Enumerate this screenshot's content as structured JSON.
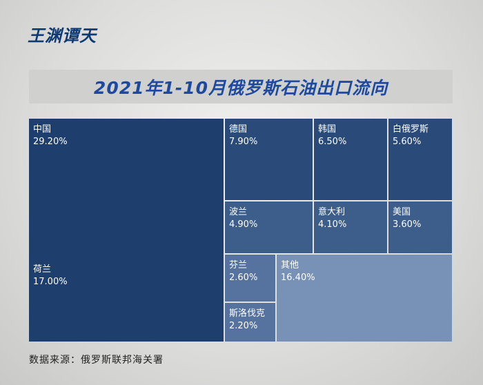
{
  "logo_text": "王渊谭天",
  "title": "2021年1-10月俄罗斯石油出口流向",
  "source": "数据来源：俄罗斯联邦海关署",
  "chart_data": {
    "type": "treemap",
    "title": "2021年1-10月俄罗斯石油出口流向",
    "items": [
      {
        "name": "中国",
        "label": "29.20%",
        "value": 29.2,
        "color": "#1e3f6e"
      },
      {
        "name": "荷兰",
        "label": "17.00%",
        "value": 17.0,
        "color": "#1e3f6e"
      },
      {
        "name": "德国",
        "label": "7.90%",
        "value": 7.9,
        "color": "#2a4b7a"
      },
      {
        "name": "韩国",
        "label": "6.50%",
        "value": 6.5,
        "color": "#2a4b7a"
      },
      {
        "name": "白俄罗斯",
        "label": "5.60%",
        "value": 5.6,
        "color": "#2a4b7a"
      },
      {
        "name": "波兰",
        "label": "4.90%",
        "value": 4.9,
        "color": "#3d5d8b"
      },
      {
        "name": "意大利",
        "label": "4.10%",
        "value": 4.1,
        "color": "#3d5d8b"
      },
      {
        "name": "美国",
        "label": "3.60%",
        "value": 3.6,
        "color": "#3d5d8b"
      },
      {
        "name": "芬兰",
        "label": "2.60%",
        "value": 2.6,
        "color": "#5673a0"
      },
      {
        "name": "斯洛伐克",
        "label": "2.20%",
        "value": 2.2,
        "color": "#5673a0"
      },
      {
        "name": "其他",
        "label": "16.40%",
        "value": 16.4,
        "color": "#7891b6"
      }
    ]
  }
}
